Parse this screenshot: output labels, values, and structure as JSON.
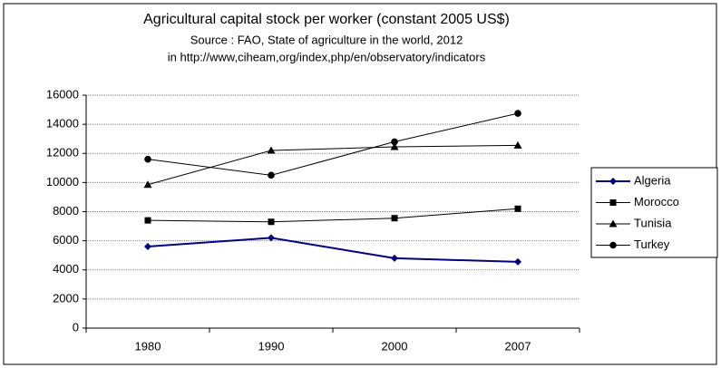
{
  "chart_data": {
    "type": "line",
    "title": "Agricultural capital stock per worker (constant 2005 US$)",
    "subtitle": [
      "Source : FAO, State of agriculture in the world, 2012",
      "in http://www,ciheam,org/index,php/en/observatory/indicators"
    ],
    "categories": [
      "1980",
      "1990",
      "2000",
      "2007"
    ],
    "series": [
      {
        "name": "Algeria",
        "color": "#000080",
        "marker": "diamond",
        "values": [
          5600,
          6200,
          4800,
          4550
        ]
      },
      {
        "name": "Morocco",
        "color": "#000000",
        "marker": "square",
        "values": [
          7400,
          7300,
          7550,
          8200
        ]
      },
      {
        "name": "Tunisia",
        "color": "#000000",
        "marker": "triangle",
        "values": [
          9850,
          12200,
          12450,
          12550
        ]
      },
      {
        "name": "Turkey",
        "color": "#000000",
        "marker": "circle",
        "values": [
          11600,
          10500,
          12800,
          14750
        ]
      }
    ],
    "ylim": [
      0,
      16000
    ],
    "yticks": [
      0,
      2000,
      4000,
      6000,
      8000,
      10000,
      12000,
      14000,
      16000
    ],
    "grid": true,
    "legend": "right"
  }
}
